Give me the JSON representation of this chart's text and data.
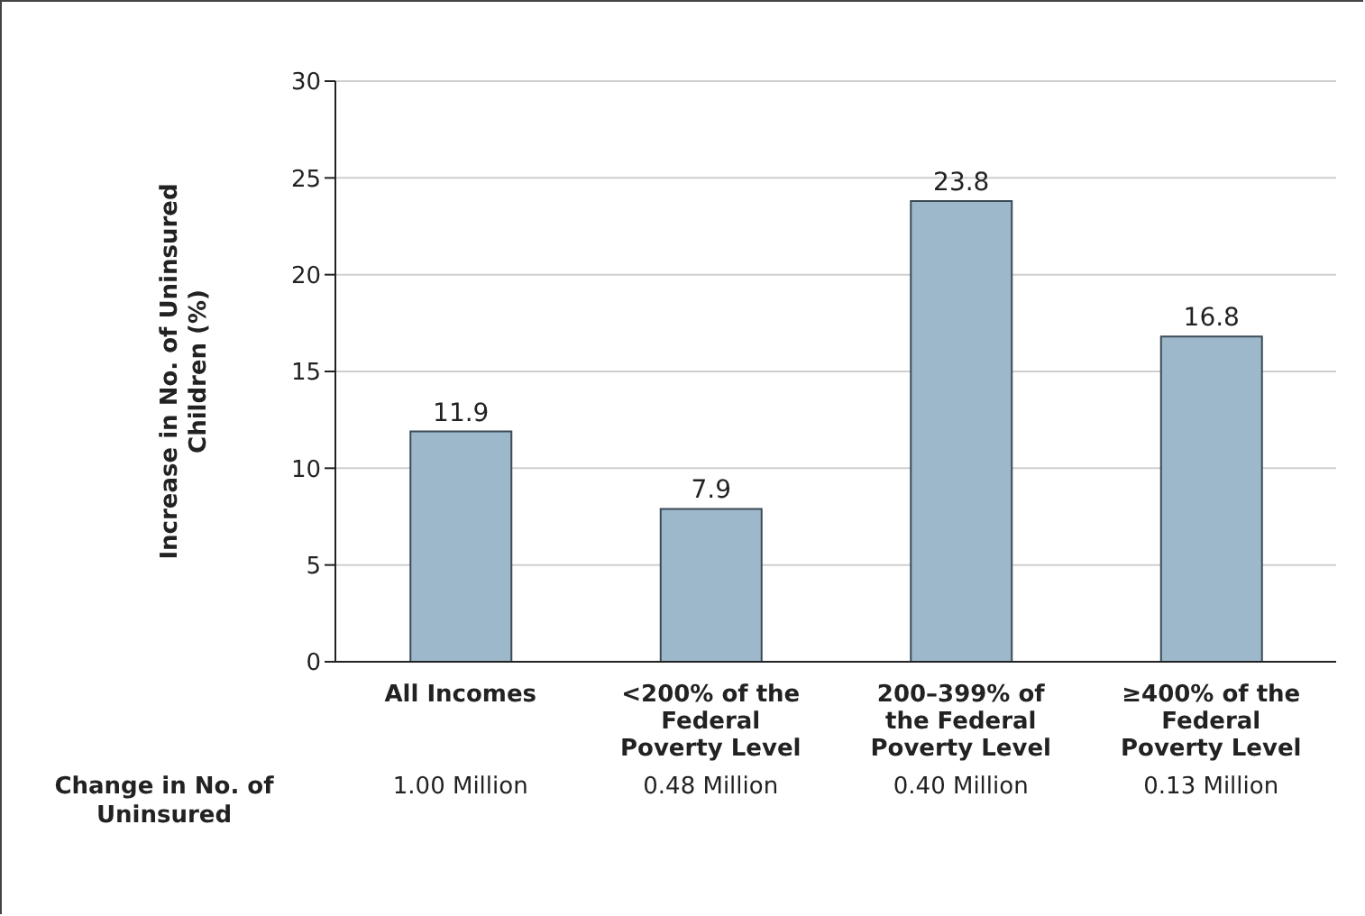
{
  "chart_data": {
    "type": "bar",
    "ylabel": "Increase in No. of Uninsured Children (%)",
    "categories": [
      "All Incomes",
      "<200% of the Federal Poverty Level",
      "200–399% of the Federal Poverty Level",
      "≥400% of the Federal Poverty Level"
    ],
    "values": [
      11.9,
      7.9,
      23.8,
      16.8
    ],
    "color": "#9cb8ca",
    "ylim": [
      0,
      30
    ],
    "yticks": [
      0,
      5,
      10,
      15,
      20,
      25,
      30
    ],
    "grid": "y",
    "data_labels": true,
    "annotations": [
      "Change in No. of Uninsured",
      "1.00 Million",
      "0.48 Million",
      "0.40 Million",
      "0.13 Million"
    ]
  }
}
